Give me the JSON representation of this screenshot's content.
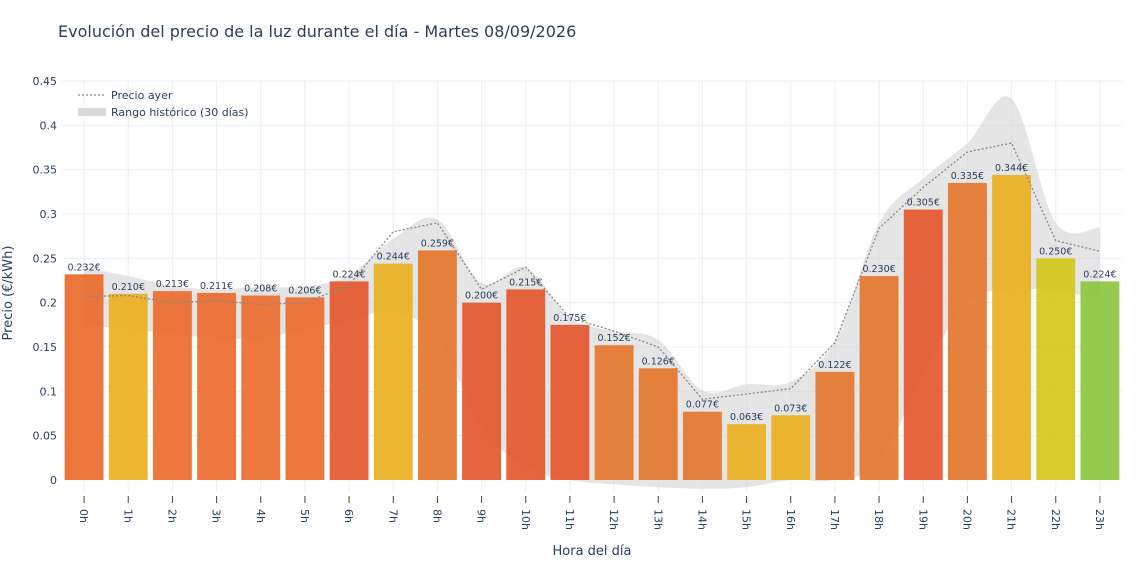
{
  "title": "Evolución del precio de la luz durante el día - Martes 08/09/2026",
  "chart_data": {
    "type": "bar",
    "categories": [
      "0h",
      "1h",
      "2h",
      "3h",
      "4h",
      "5h",
      "6h",
      "7h",
      "8h",
      "9h",
      "10h",
      "11h",
      "12h",
      "13h",
      "14h",
      "15h",
      "16h",
      "17h",
      "18h",
      "19h",
      "20h",
      "21h",
      "22h",
      "23h"
    ],
    "values": [
      0.232,
      0.21,
      0.213,
      0.211,
      0.208,
      0.206,
      0.224,
      0.244,
      0.259,
      0.2,
      0.215,
      0.175,
      0.152,
      0.126,
      0.077,
      0.063,
      0.073,
      0.122,
      0.23,
      0.305,
      0.335,
      0.344,
      0.25,
      0.224
    ],
    "value_labels": [
      "0.232€",
      "0.210€",
      "0.213€",
      "0.211€",
      "0.208€",
      "0.206€",
      "0.224€",
      "0.244€",
      "0.259€",
      "0.200€",
      "0.215€",
      "0.175€",
      "0.152€",
      "0.126€",
      "0.077€",
      "0.063€",
      "0.073€",
      "0.122€",
      "0.230€",
      "0.305€",
      "0.335€",
      "0.344€",
      "0.250€",
      "0.224€"
    ],
    "bar_colors": [
      "#ea6b2c",
      "#ebb021",
      "#eb6b2e",
      "#eb6b2e",
      "#eb6b2e",
      "#eb6b2e",
      "#e4572e",
      "#ebb021",
      "#e4772e",
      "#e4572e",
      "#e4572e",
      "#e4572e",
      "#e4772e",
      "#e4772e",
      "#e4772e",
      "#ebb021",
      "#ebb021",
      "#e4772e",
      "#e4772e",
      "#e4572e",
      "#e4772e",
      "#ebb021",
      "#d4c71c",
      "#8bc53f"
    ],
    "series": [
      {
        "name": "Precio ayer",
        "style": "dotted-line",
        "color": "#888888",
        "values": [
          0.207,
          0.208,
          0.2,
          0.202,
          0.198,
          0.2,
          0.22,
          0.28,
          0.29,
          0.215,
          0.24,
          0.183,
          0.168,
          0.15,
          0.091,
          0.097,
          0.103,
          0.155,
          0.284,
          0.33,
          0.37,
          0.38,
          0.27,
          0.258
        ]
      },
      {
        "name": "Rango histórico (30 días)",
        "style": "band",
        "color": "#cccccc",
        "upper": [
          0.24,
          0.23,
          0.219,
          0.215,
          0.218,
          0.218,
          0.231,
          0.272,
          0.294,
          0.222,
          0.24,
          0.183,
          0.168,
          0.158,
          0.101,
          0.108,
          0.111,
          0.157,
          0.29,
          0.34,
          0.38,
          0.43,
          0.29,
          0.285
        ],
        "lower": [
          0.175,
          0.17,
          0.165,
          0.16,
          0.16,
          0.17,
          0.18,
          0.19,
          0.16,
          0.06,
          0.015,
          0.0,
          -0.005,
          -0.008,
          -0.01,
          -0.008,
          0.0,
          0.0,
          0.02,
          0.12,
          0.2,
          0.215,
          0.213,
          0.205
        ]
      }
    ],
    "xlabel": "Hora del día",
    "ylabel": "Precio (€/kWh)",
    "yticks": [
      0,
      0.05,
      0.1,
      0.15,
      0.2,
      0.25,
      0.3,
      0.35,
      0.4,
      0.45
    ],
    "ytick_labels": [
      "0",
      "0.05",
      "0.1",
      "0.15",
      "0.2",
      "0.25",
      "0.3",
      "0.35",
      "0.4",
      "0.45"
    ],
    "ylim": [
      -0.01,
      0.45
    ],
    "grid": true,
    "legend_position": "top-left"
  }
}
